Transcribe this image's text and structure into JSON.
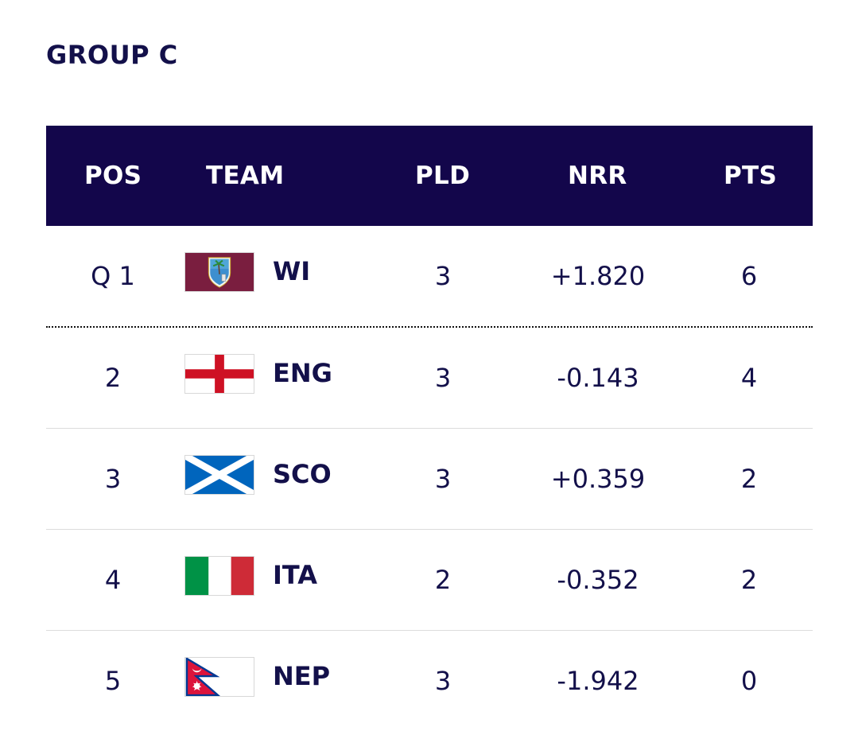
{
  "group": {
    "title": "GROUP C"
  },
  "headers": {
    "pos": "POS",
    "team": "TEAM",
    "pld": "PLD",
    "nrr": "NRR",
    "pts": "PTS"
  },
  "rows": [
    {
      "pos": "Q 1",
      "team": "WI",
      "flag_icon": "west-indies-flag-icon",
      "pld": "3",
      "nrr": "+1.820",
      "pts": "6"
    },
    {
      "pos": "2",
      "team": "ENG",
      "flag_icon": "england-flag-icon",
      "pld": "3",
      "nrr": "-0.143",
      "pts": "4"
    },
    {
      "pos": "3",
      "team": "SCO",
      "flag_icon": "scotland-flag-icon",
      "pld": "3",
      "nrr": "+0.359",
      "pts": "2"
    },
    {
      "pos": "4",
      "team": "ITA",
      "flag_icon": "italy-flag-icon",
      "pld": "2",
      "nrr": "-0.352",
      "pts": "2"
    },
    {
      "pos": "5",
      "team": "NEP",
      "flag_icon": "nepal-flag-icon",
      "pld": "3",
      "nrr": "-1.942",
      "pts": "0"
    }
  ],
  "colors": {
    "header_bg": "#13064b",
    "text": "#13104a",
    "west_indies_maroon": "#7a1e3f",
    "england_red": "#ce1124",
    "scotland_blue": "#0065bd",
    "italy_green": "#009246",
    "italy_red": "#ce2b37",
    "nepal_crimson": "#dc143c",
    "nepal_blue": "#003893"
  }
}
